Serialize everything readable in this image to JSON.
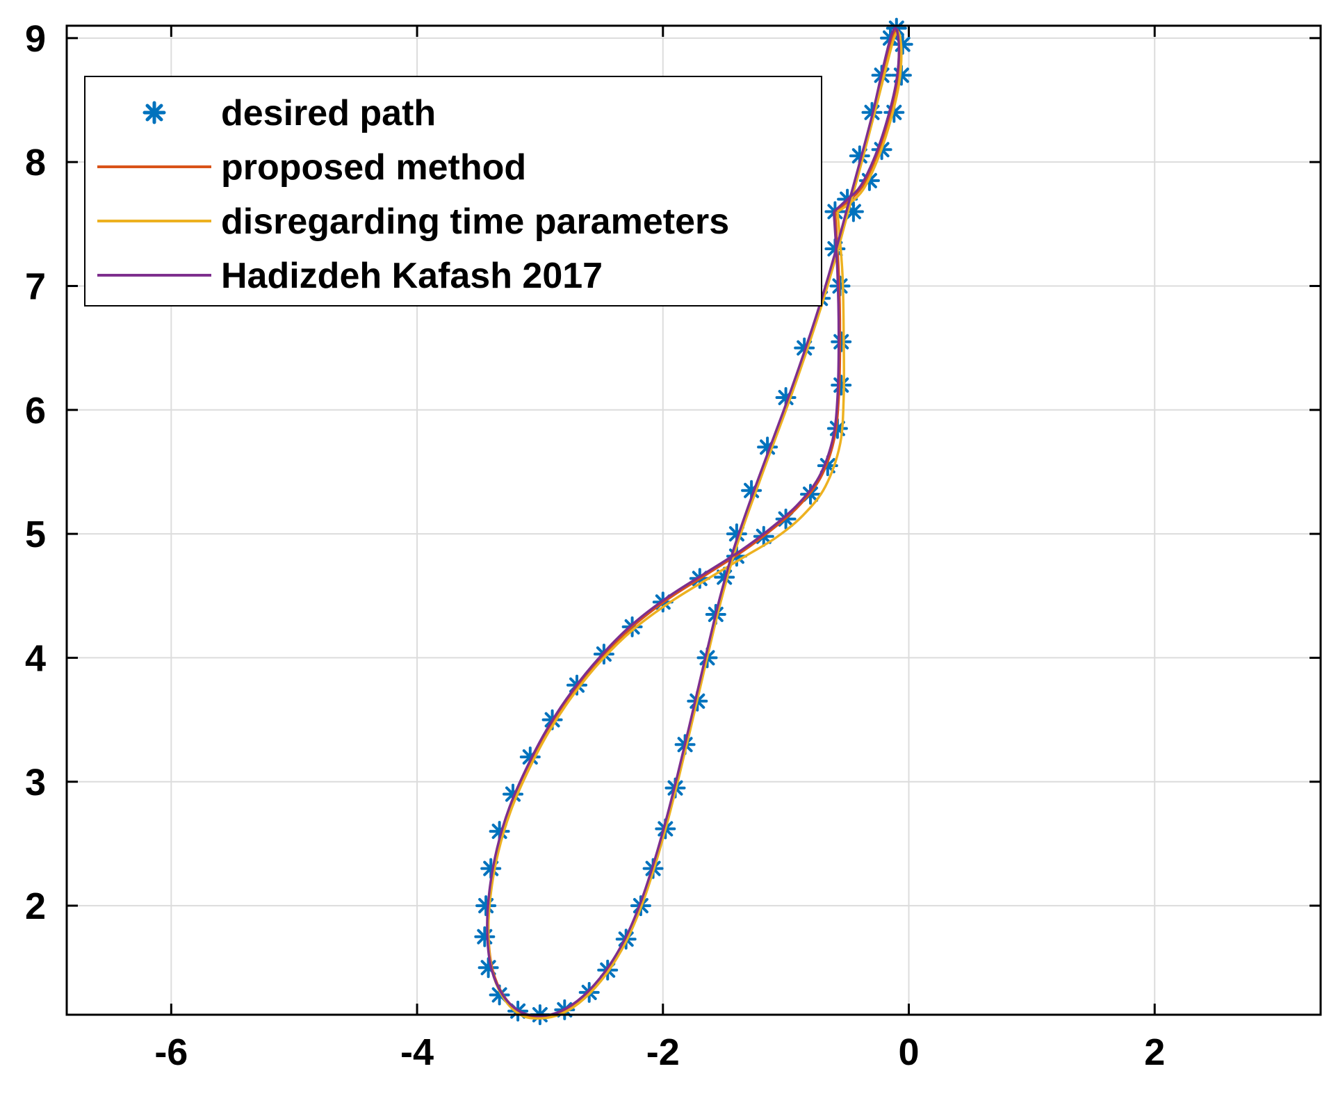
{
  "chart_data": {
    "type": "line",
    "title": "",
    "xlabel": "",
    "ylabel": "",
    "xlim": [
      -6.85,
      3.35
    ],
    "ylim": [
      1.12,
      9.1
    ],
    "xticks": [
      -6,
      -4,
      -2,
      0,
      2
    ],
    "yticks": [
      2,
      3,
      4,
      5,
      6,
      7,
      8,
      9
    ],
    "xtick_labels": [
      "-6",
      "-4",
      "-2",
      "0",
      "2"
    ],
    "ytick_labels": [
      "2",
      "3",
      "4",
      "5",
      "6",
      "7",
      "8",
      "9"
    ],
    "grid": true,
    "legend_position": "top-left",
    "series": [
      {
        "name": "desired path",
        "style": "markers",
        "marker": "asterisk",
        "color": "#0072BD",
        "points": [
          [
            -0.6,
            7.6
          ],
          [
            -0.56,
            7.0
          ],
          [
            -0.55,
            6.55
          ],
          [
            -0.55,
            6.2
          ],
          [
            -0.58,
            5.85
          ],
          [
            -0.66,
            5.55
          ],
          [
            -0.8,
            5.32
          ],
          [
            -1.0,
            5.12
          ],
          [
            -1.18,
            4.98
          ],
          [
            -1.4,
            4.82
          ],
          [
            -1.7,
            4.64
          ],
          [
            -2.0,
            4.45
          ],
          [
            -2.25,
            4.25
          ],
          [
            -2.48,
            4.03
          ],
          [
            -2.7,
            3.78
          ],
          [
            -2.9,
            3.5
          ],
          [
            -3.08,
            3.2
          ],
          [
            -3.22,
            2.9
          ],
          [
            -3.33,
            2.6
          ],
          [
            -3.4,
            2.3
          ],
          [
            -3.44,
            2.0
          ],
          [
            -3.45,
            1.75
          ],
          [
            -3.42,
            1.5
          ],
          [
            -3.33,
            1.28
          ],
          [
            -3.18,
            1.15
          ],
          [
            -3.0,
            1.12
          ],
          [
            -2.8,
            1.16
          ],
          [
            -2.6,
            1.3
          ],
          [
            -2.45,
            1.48
          ],
          [
            -2.3,
            1.73
          ],
          [
            -2.18,
            2.0
          ],
          [
            -2.08,
            2.3
          ],
          [
            -1.98,
            2.62
          ],
          [
            -1.9,
            2.95
          ],
          [
            -1.82,
            3.3
          ],
          [
            -1.72,
            3.65
          ],
          [
            -1.64,
            4.0
          ],
          [
            -1.57,
            4.35
          ],
          [
            -1.5,
            4.65
          ],
          [
            -1.4,
            5.0
          ],
          [
            -1.28,
            5.35
          ],
          [
            -1.15,
            5.7
          ],
          [
            -1.0,
            6.1
          ],
          [
            -0.85,
            6.5
          ],
          [
            -0.72,
            6.9
          ],
          [
            -0.6,
            7.3
          ],
          [
            -0.5,
            7.7
          ],
          [
            -0.4,
            8.05
          ],
          [
            -0.3,
            8.4
          ],
          [
            -0.22,
            8.7
          ],
          [
            -0.15,
            9.0
          ],
          [
            -0.1,
            9.08
          ],
          [
            -0.05,
            8.95
          ],
          [
            -0.06,
            8.7
          ],
          [
            -0.12,
            8.4
          ],
          [
            -0.22,
            8.1
          ],
          [
            -0.32,
            7.85
          ],
          [
            -0.45,
            7.6
          ]
        ]
      },
      {
        "name": "proposed method",
        "style": "line",
        "color": "#D95319",
        "points": [
          [
            -0.6,
            7.6
          ],
          [
            -0.57,
            7.1
          ],
          [
            -0.56,
            6.6
          ],
          [
            -0.57,
            6.1
          ],
          [
            -0.61,
            5.75
          ],
          [
            -0.72,
            5.45
          ],
          [
            -0.9,
            5.22
          ],
          [
            -1.12,
            5.03
          ],
          [
            -1.35,
            4.86
          ],
          [
            -1.65,
            4.67
          ],
          [
            -1.95,
            4.48
          ],
          [
            -2.25,
            4.25
          ],
          [
            -2.5,
            4.0
          ],
          [
            -2.73,
            3.72
          ],
          [
            -2.93,
            3.42
          ],
          [
            -3.1,
            3.1
          ],
          [
            -3.24,
            2.78
          ],
          [
            -3.34,
            2.45
          ],
          [
            -3.4,
            2.12
          ],
          [
            -3.42,
            1.8
          ],
          [
            -3.39,
            1.5
          ],
          [
            -3.3,
            1.28
          ],
          [
            -3.16,
            1.14
          ],
          [
            -3.0,
            1.1
          ],
          [
            -2.82,
            1.14
          ],
          [
            -2.64,
            1.26
          ],
          [
            -2.46,
            1.46
          ],
          [
            -2.3,
            1.72
          ],
          [
            -2.17,
            2.02
          ],
          [
            -2.06,
            2.35
          ],
          [
            -1.96,
            2.7
          ],
          [
            -1.87,
            3.05
          ],
          [
            -1.78,
            3.42
          ],
          [
            -1.69,
            3.8
          ],
          [
            -1.6,
            4.18
          ],
          [
            -1.52,
            4.5
          ],
          [
            -1.42,
            4.85
          ],
          [
            -1.3,
            5.2
          ],
          [
            -1.16,
            5.58
          ],
          [
            -1.01,
            5.98
          ],
          [
            -0.86,
            6.4
          ],
          [
            -0.72,
            6.82
          ],
          [
            -0.6,
            7.22
          ],
          [
            -0.49,
            7.62
          ],
          [
            -0.38,
            8.02
          ],
          [
            -0.28,
            8.4
          ],
          [
            -0.2,
            8.75
          ],
          [
            -0.13,
            9.02
          ],
          [
            -0.09,
            9.06
          ],
          [
            -0.07,
            8.9
          ],
          [
            -0.09,
            8.65
          ],
          [
            -0.16,
            8.35
          ],
          [
            -0.26,
            8.05
          ],
          [
            -0.38,
            7.8
          ],
          [
            -0.5,
            7.68
          ],
          [
            -0.6,
            7.6
          ]
        ]
      },
      {
        "name": "disregarding time parameters",
        "style": "line",
        "color": "#EDB120",
        "points": [
          [
            -0.58,
            7.6
          ],
          [
            -0.54,
            7.1
          ],
          [
            -0.53,
            6.6
          ],
          [
            -0.53,
            6.1
          ],
          [
            -0.56,
            5.72
          ],
          [
            -0.68,
            5.38
          ],
          [
            -0.86,
            5.15
          ],
          [
            -1.08,
            4.97
          ],
          [
            -1.33,
            4.82
          ],
          [
            -1.63,
            4.64
          ],
          [
            -1.94,
            4.45
          ],
          [
            -2.24,
            4.23
          ],
          [
            -2.5,
            3.98
          ],
          [
            -2.73,
            3.7
          ],
          [
            -2.93,
            3.4
          ],
          [
            -3.1,
            3.08
          ],
          [
            -3.24,
            2.76
          ],
          [
            -3.34,
            2.43
          ],
          [
            -3.4,
            2.1
          ],
          [
            -3.42,
            1.78
          ],
          [
            -3.39,
            1.48
          ],
          [
            -3.3,
            1.26
          ],
          [
            -3.16,
            1.12
          ],
          [
            -3.0,
            1.09
          ],
          [
            -2.82,
            1.13
          ],
          [
            -2.64,
            1.25
          ],
          [
            -2.46,
            1.45
          ],
          [
            -2.3,
            1.71
          ],
          [
            -2.17,
            2.01
          ],
          [
            -2.06,
            2.34
          ],
          [
            -1.96,
            2.69
          ],
          [
            -1.87,
            3.04
          ],
          [
            -1.78,
            3.41
          ],
          [
            -1.69,
            3.79
          ],
          [
            -1.6,
            4.17
          ],
          [
            -1.52,
            4.49
          ],
          [
            -1.42,
            4.84
          ],
          [
            -1.3,
            5.19
          ],
          [
            -1.16,
            5.57
          ],
          [
            -1.01,
            5.97
          ],
          [
            -0.86,
            6.39
          ],
          [
            -0.72,
            6.81
          ],
          [
            -0.6,
            7.21
          ],
          [
            -0.49,
            7.61
          ],
          [
            -0.38,
            8.01
          ],
          [
            -0.28,
            8.39
          ],
          [
            -0.19,
            8.74
          ],
          [
            -0.12,
            9.0
          ],
          [
            -0.08,
            9.04
          ],
          [
            -0.06,
            8.88
          ],
          [
            -0.08,
            8.63
          ],
          [
            -0.15,
            8.33
          ],
          [
            -0.25,
            8.03
          ],
          [
            -0.37,
            7.78
          ],
          [
            -0.49,
            7.66
          ],
          [
            -0.58,
            7.6
          ]
        ]
      },
      {
        "name": "Hadizdeh Kafash 2017",
        "style": "line",
        "color": "#7E2F8E",
        "points": [
          [
            -0.61,
            7.6
          ],
          [
            -0.58,
            7.1
          ],
          [
            -0.57,
            6.6
          ],
          [
            -0.58,
            6.1
          ],
          [
            -0.62,
            5.76
          ],
          [
            -0.73,
            5.46
          ],
          [
            -0.91,
            5.23
          ],
          [
            -1.13,
            5.04
          ],
          [
            -1.36,
            4.87
          ],
          [
            -1.66,
            4.68
          ],
          [
            -1.96,
            4.49
          ],
          [
            -2.26,
            4.26
          ],
          [
            -2.51,
            4.01
          ],
          [
            -2.74,
            3.73
          ],
          [
            -2.94,
            3.43
          ],
          [
            -3.11,
            3.11
          ],
          [
            -3.25,
            2.79
          ],
          [
            -3.35,
            2.46
          ],
          [
            -3.41,
            2.13
          ],
          [
            -3.43,
            1.81
          ],
          [
            -3.4,
            1.51
          ],
          [
            -3.31,
            1.29
          ],
          [
            -3.17,
            1.15
          ],
          [
            -3.0,
            1.11
          ],
          [
            -2.83,
            1.15
          ],
          [
            -2.65,
            1.27
          ],
          [
            -2.47,
            1.47
          ],
          [
            -2.31,
            1.73
          ],
          [
            -2.18,
            2.03
          ],
          [
            -2.07,
            2.36
          ],
          [
            -1.97,
            2.71
          ],
          [
            -1.88,
            3.06
          ],
          [
            -1.79,
            3.43
          ],
          [
            -1.7,
            3.81
          ],
          [
            -1.61,
            4.19
          ],
          [
            -1.53,
            4.51
          ],
          [
            -1.43,
            4.86
          ],
          [
            -1.31,
            5.21
          ],
          [
            -1.17,
            5.59
          ],
          [
            -1.02,
            5.99
          ],
          [
            -0.87,
            6.41
          ],
          [
            -0.73,
            6.83
          ],
          [
            -0.61,
            7.23
          ],
          [
            -0.5,
            7.63
          ],
          [
            -0.39,
            8.03
          ],
          [
            -0.29,
            8.41
          ],
          [
            -0.21,
            8.76
          ],
          [
            -0.14,
            9.03
          ],
          [
            -0.1,
            9.07
          ],
          [
            -0.08,
            8.91
          ],
          [
            -0.1,
            8.66
          ],
          [
            -0.17,
            8.36
          ],
          [
            -0.27,
            8.06
          ],
          [
            -0.39,
            7.81
          ],
          [
            -0.51,
            7.69
          ],
          [
            -0.61,
            7.6
          ]
        ]
      }
    ]
  },
  "legend": {
    "entries": [
      {
        "label": "desired path"
      },
      {
        "label": "proposed method"
      },
      {
        "label": "disregarding time parameters"
      },
      {
        "label": "Hadizdeh Kafash 2017"
      }
    ]
  }
}
